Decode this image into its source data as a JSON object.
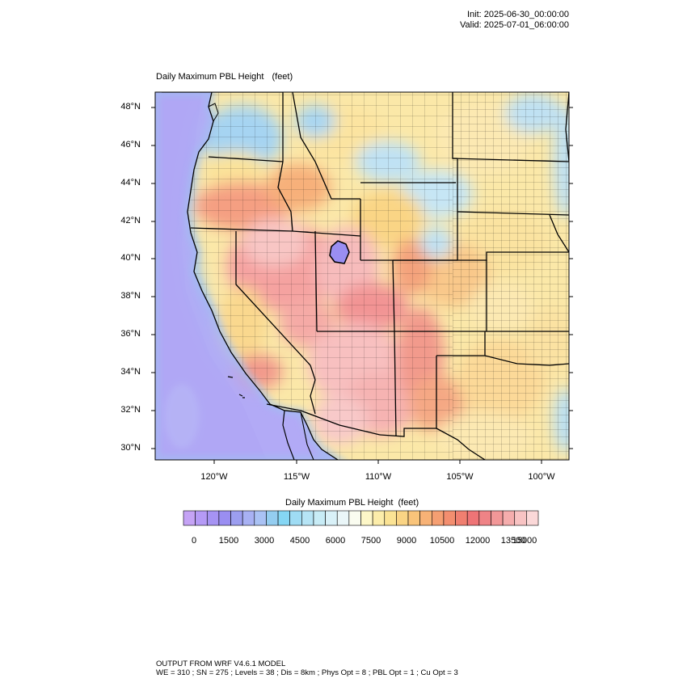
{
  "header": {
    "init": "Init: 2025-06-30_00:00:00",
    "valid": "Valid: 2025-07-01_06:00:00"
  },
  "map": {
    "title": "Daily Maximum PBL Height",
    "units": "(feet)",
    "lat_labels": [
      "48°N",
      "46°N",
      "44°N",
      "42°N",
      "40°N",
      "38°N",
      "36°N",
      "34°N",
      "32°N",
      "30°N"
    ],
    "lon_labels": [
      "120°W",
      "115°W",
      "110°W",
      "105°W",
      "100°W"
    ],
    "field_summary": {
      "ocean": "low (0–3000 ft)",
      "great_basin_southwest": "high (12000–15000 ft)",
      "great_plains": "moderate (7500–10500 ft)"
    }
  },
  "colorbar": {
    "title": "Daily Maximum PBL Height",
    "units": "(feet)",
    "labels": [
      "0",
      "1500",
      "3000",
      "4500",
      "6000",
      "7500",
      "9000",
      "10500",
      "12000",
      "13500",
      "15000"
    ],
    "colors": [
      "#c5a3f5",
      "#b59af6",
      "#a693f3",
      "#9a8ef2",
      "#9c9ef0",
      "#a8b1f3",
      "#aac2f4",
      "#94cdf0",
      "#85d6f4",
      "#9fdcf4",
      "#b6e4f5",
      "#c8ecf6",
      "#d9f1f8",
      "#eaf6f8",
      "#fafcf0",
      "#fdf7c8",
      "#fcedaa",
      "#fbe394",
      "#fad484",
      "#f9c47a",
      "#f7b276",
      "#f59f72",
      "#f38e6f",
      "#f07f70",
      "#ee7476",
      "#ef8386",
      "#f29798",
      "#f5adad",
      "#f8c3c3",
      "#fbd8d8"
    ]
  },
  "footer": {
    "line1": "OUTPUT FROM WRF V4.6.1 MODEL",
    "line2": "WE = 310 ; SN = 275 ; Levels = 38 ; Dis = 8km ; Phys Opt = 8 ; PBL Opt = 1 ; Cu Opt = 3"
  }
}
